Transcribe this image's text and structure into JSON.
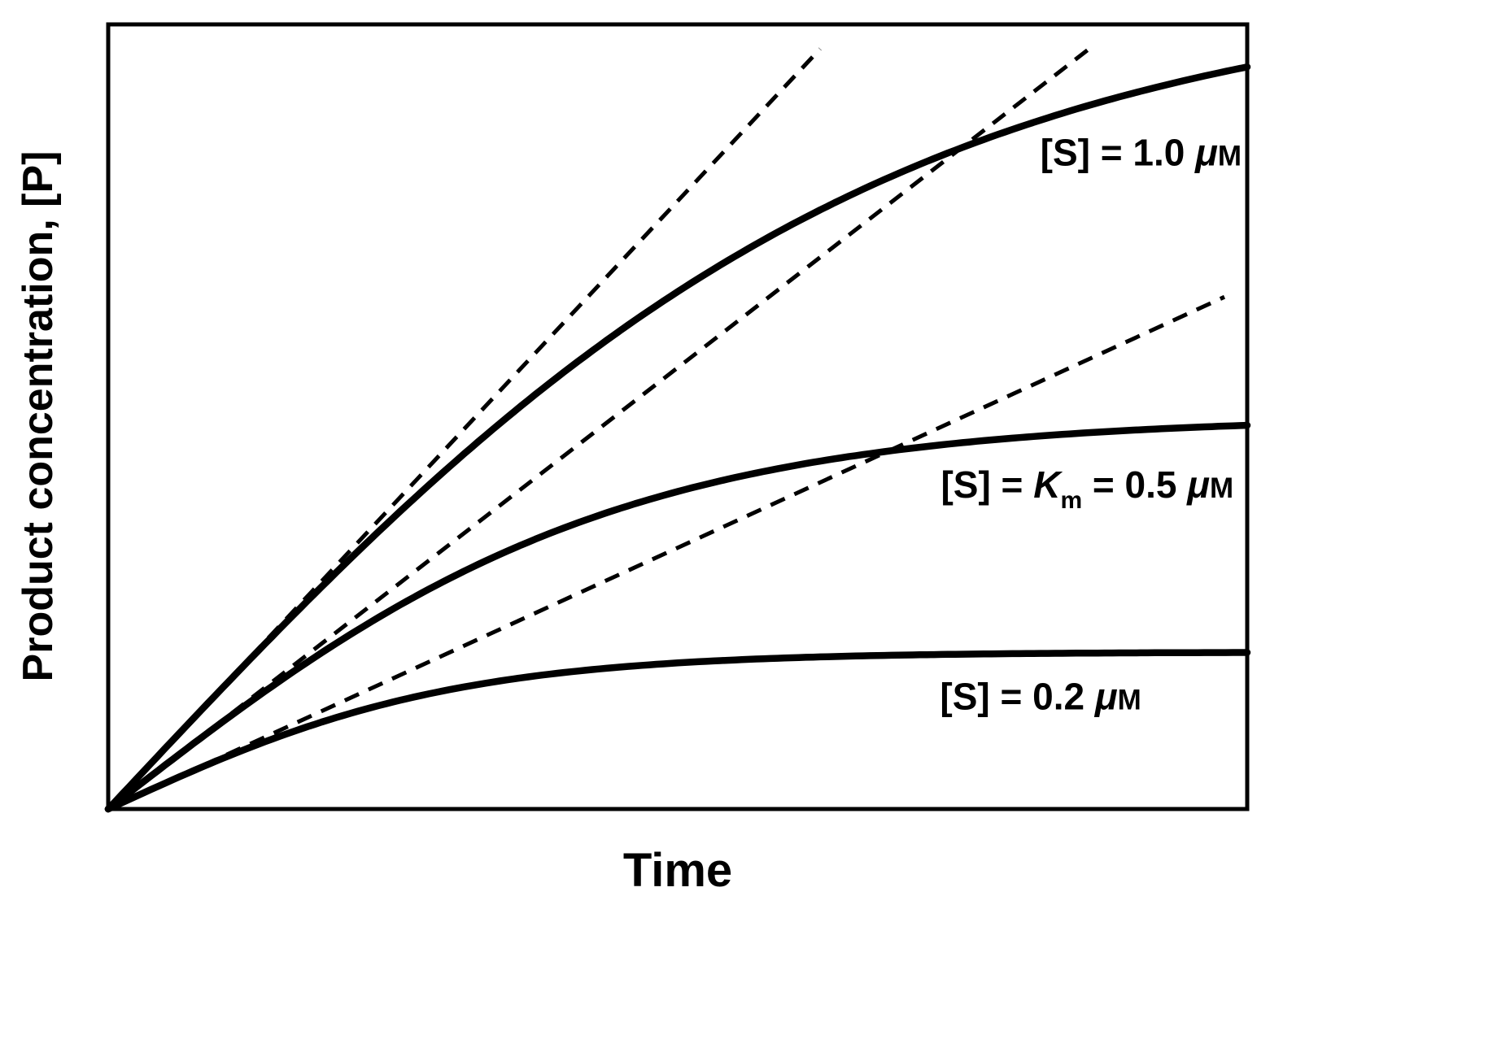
{
  "figure": {
    "background_color": "#ffffff",
    "ink_color": "#000000"
  },
  "chart_data": {
    "type": "line",
    "title": "",
    "xlabel": "Time",
    "ylabel": "Product concentration, [P]",
    "x_axis": {
      "range_normalized": [
        0,
        1
      ],
      "ticks": "none"
    },
    "y_axis": {
      "range_normalized": [
        0,
        1
      ],
      "ticks": "none"
    },
    "grid": false,
    "frame": "closed rectangular box, no tick marks or numeric labels",
    "legend_position": "labels placed inline to the right of each curve",
    "curve_model": "y = asymptote * tanh(initial_slope * x / asymptote), normalized axes 0..1",
    "tangent_model": "dashed initial-rate tangent: y = initial_slope * x, from origin to x = tangent_end_x",
    "x_samples": [
      0,
      0.1,
      0.2,
      0.3,
      0.4,
      0.5,
      0.6,
      0.7,
      0.8,
      0.9,
      1.0
    ],
    "series": [
      {
        "id": "substrate-1-0-uM",
        "label_text": "[S] = 1.0 μM",
        "asymptote": 1.05,
        "initial_slope": 1.55,
        "tangent_end_x": 0.625,
        "y_samples": [
          0,
          0.154,
          0.301,
          0.437,
          0.557,
          0.659,
          0.745,
          0.815,
          0.869,
          0.912,
          0.946
        ],
        "label_anchor": {
          "x": 0.995,
          "y": 0.82
        },
        "label_parts": [
          {
            "t": "[S] = 1.0 ",
            "s": "b"
          },
          {
            "t": "μ",
            "s": "bi"
          },
          {
            "t": "M",
            "s": "sc"
          }
        ]
      },
      {
        "id": "substrate-Km-0-5-uM",
        "label_text": "[S] = Km = 0.5 μM",
        "asymptote": 0.5,
        "initial_slope": 1.125,
        "tangent_end_x": 0.862,
        "y_samples": [
          0,
          0.111,
          0.212,
          0.295,
          0.359,
          0.405,
          0.437,
          0.459,
          0.474,
          0.483,
          0.489
        ],
        "label_anchor": {
          "x": 0.988,
          "y": 0.397
        },
        "label_parts": [
          {
            "t": "[S] = ",
            "s": "b"
          },
          {
            "t": "K",
            "s": "bi"
          },
          {
            "t": "m",
            "s": "sub"
          },
          {
            "t": " = 0.5 ",
            "s": "b"
          },
          {
            "t": "μ",
            "s": "bi"
          },
          {
            "t": "M",
            "s": "sc"
          }
        ]
      },
      {
        "id": "substrate-0-2-uM",
        "label_text": "[S] = 0.2 μM",
        "asymptote": 0.2,
        "initial_slope": 0.666,
        "tangent_end_x": 0.98,
        "y_samples": [
          0,
          0.064,
          0.117,
          0.152,
          0.174,
          0.186,
          0.193,
          0.196,
          0.198,
          0.199,
          0.2
        ],
        "label_anchor": {
          "x": 0.907,
          "y": 0.127
        },
        "label_parts": [
          {
            "t": "[S] = 0.2 ",
            "s": "b"
          },
          {
            "t": "μ",
            "s": "bi"
          },
          {
            "t": "M",
            "s": "sc"
          }
        ]
      }
    ]
  }
}
